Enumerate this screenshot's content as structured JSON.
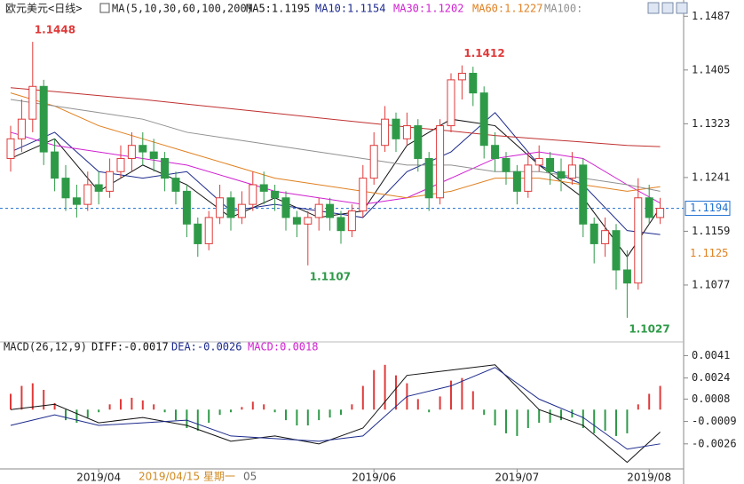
{
  "chart_data": [
    {
      "type": "candlestick",
      "title": "欧元美元<日线>",
      "subtitle": "MA(5,10,30,60,100,200)",
      "up_color": "#e03a3a",
      "down_color": "#2e9a48",
      "ylim": [
        1.0997,
        1.1505
      ],
      "yticks": [
        1.1077,
        1.1159,
        1.1241,
        1.1323,
        1.1405,
        1.1487
      ],
      "candles": [
        [
          1.127,
          1.132,
          1.125,
          1.13
        ],
        [
          1.13,
          1.136,
          1.128,
          1.133
        ],
        [
          1.133,
          1.1448,
          1.131,
          1.138
        ],
        [
          1.138,
          1.139,
          1.126,
          1.128
        ],
        [
          1.128,
          1.13,
          1.122,
          1.124
        ],
        [
          1.124,
          1.126,
          1.119,
          1.121
        ],
        [
          1.121,
          1.123,
          1.118,
          1.12
        ],
        [
          1.12,
          1.125,
          1.119,
          1.123
        ],
        [
          1.123,
          1.125,
          1.12,
          1.122
        ],
        [
          1.122,
          1.127,
          1.121,
          1.125
        ],
        [
          1.125,
          1.129,
          1.124,
          1.127
        ],
        [
          1.127,
          1.131,
          1.125,
          1.129
        ],
        [
          1.129,
          1.131,
          1.126,
          1.128
        ],
        [
          1.128,
          1.13,
          1.125,
          1.127
        ],
        [
          1.127,
          1.128,
          1.122,
          1.124
        ],
        [
          1.124,
          1.125,
          1.12,
          1.122
        ],
        [
          1.122,
          1.123,
          1.115,
          1.117
        ],
        [
          1.117,
          1.118,
          1.112,
          1.114
        ],
        [
          1.114,
          1.119,
          1.113,
          1.118
        ],
        [
          1.118,
          1.123,
          1.117,
          1.121
        ],
        [
          1.121,
          1.122,
          1.116,
          1.118
        ],
        [
          1.118,
          1.122,
          1.117,
          1.12
        ],
        [
          1.12,
          1.125,
          1.119,
          1.123
        ],
        [
          1.123,
          1.125,
          1.12,
          1.122
        ],
        [
          1.122,
          1.123,
          1.119,
          1.121
        ],
        [
          1.121,
          1.122,
          1.116,
          1.118
        ],
        [
          1.118,
          1.119,
          1.115,
          1.117
        ],
        [
          1.117,
          1.119,
          1.1107,
          1.118
        ],
        [
          1.118,
          1.121,
          1.116,
          1.12
        ],
        [
          1.12,
          1.121,
          1.116,
          1.118
        ],
        [
          1.118,
          1.119,
          1.114,
          1.116
        ],
        [
          1.116,
          1.12,
          1.115,
          1.119
        ],
        [
          1.119,
          1.126,
          1.118,
          1.124
        ],
        [
          1.124,
          1.131,
          1.123,
          1.129
        ],
        [
          1.129,
          1.135,
          1.128,
          1.133
        ],
        [
          1.133,
          1.134,
          1.128,
          1.13
        ],
        [
          1.13,
          1.134,
          1.129,
          1.132
        ],
        [
          1.132,
          1.133,
          1.125,
          1.127
        ],
        [
          1.127,
          1.128,
          1.119,
          1.121
        ],
        [
          1.121,
          1.133,
          1.12,
          1.132
        ],
        [
          1.132,
          1.14,
          1.131,
          1.139
        ],
        [
          1.139,
          1.1412,
          1.136,
          1.14
        ],
        [
          1.14,
          1.141,
          1.135,
          1.137
        ],
        [
          1.137,
          1.138,
          1.127,
          1.129
        ],
        [
          1.129,
          1.131,
          1.125,
          1.127
        ],
        [
          1.127,
          1.128,
          1.123,
          1.125
        ],
        [
          1.125,
          1.126,
          1.12,
          1.122
        ],
        [
          1.122,
          1.128,
          1.121,
          1.126
        ],
        [
          1.126,
          1.129,
          1.125,
          1.127
        ],
        [
          1.127,
          1.128,
          1.123,
          1.125
        ],
        [
          1.125,
          1.127,
          1.122,
          1.124
        ],
        [
          1.124,
          1.128,
          1.123,
          1.126
        ],
        [
          1.126,
          1.127,
          1.115,
          1.117
        ],
        [
          1.117,
          1.118,
          1.111,
          1.114
        ],
        [
          1.114,
          1.118,
          1.112,
          1.116
        ],
        [
          1.116,
          1.117,
          1.107,
          1.11
        ],
        [
          1.11,
          1.113,
          1.1027,
          1.108
        ],
        [
          1.108,
          1.124,
          1.107,
          1.121
        ],
        [
          1.121,
          1.123,
          1.117,
          1.118
        ],
        [
          1.118,
          1.121,
          1.117,
          1.1194
        ]
      ],
      "series": [
        {
          "name": "MA5:1.1195",
          "color": "#111111",
          "x": [
            0,
            4,
            8,
            12,
            16,
            20,
            24,
            28,
            32,
            36,
            40,
            44,
            48,
            52,
            56,
            59
          ],
          "values": [
            1.127,
            1.13,
            1.122,
            1.126,
            1.123,
            1.118,
            1.121,
            1.118,
            1.119,
            1.129,
            1.133,
            1.132,
            1.126,
            1.121,
            1.112,
            1.1195
          ]
        },
        {
          "name": "MA10:1.1154",
          "color": "#1c2a8c",
          "x": [
            0,
            4,
            8,
            12,
            16,
            20,
            24,
            28,
            32,
            36,
            40,
            44,
            48,
            52,
            56,
            59
          ],
          "values": [
            1.128,
            1.131,
            1.125,
            1.124,
            1.125,
            1.119,
            1.12,
            1.119,
            1.118,
            1.125,
            1.128,
            1.134,
            1.126,
            1.123,
            1.116,
            1.1154
          ]
        },
        {
          "name": "MA30:1.1202",
          "color": "#d020d0",
          "x": [
            0,
            4,
            8,
            12,
            16,
            20,
            24,
            28,
            32,
            36,
            40,
            44,
            48,
            52,
            56,
            59
          ],
          "values": [
            1.131,
            1.129,
            1.128,
            1.127,
            1.126,
            1.124,
            1.122,
            1.121,
            1.12,
            1.121,
            1.124,
            1.127,
            1.128,
            1.127,
            1.123,
            1.1202
          ]
        },
        {
          "name": "MA60:1.1227",
          "color": "#e08020",
          "x": [
            0,
            4,
            8,
            12,
            16,
            20,
            24,
            28,
            32,
            36,
            40,
            44,
            48,
            52,
            56,
            59
          ],
          "values": [
            1.137,
            1.135,
            1.132,
            1.13,
            1.128,
            1.126,
            1.124,
            1.123,
            1.122,
            1.121,
            1.122,
            1.124,
            1.124,
            1.123,
            1.122,
            1.1227
          ]
        },
        {
          "name": "MA100:",
          "color": "#909090",
          "x": [
            0,
            4,
            8,
            12,
            16,
            20,
            24,
            28,
            32,
            36,
            40,
            44,
            48,
            52,
            56,
            59
          ],
          "values": [
            1.136,
            1.135,
            1.134,
            1.133,
            1.131,
            1.13,
            1.129,
            1.128,
            1.127,
            1.126,
            1.126,
            1.125,
            1.125,
            1.124,
            1.123,
            1.122
          ]
        },
        {
          "color": "#c03030",
          "x": [
            0,
            4,
            8,
            12,
            16,
            20,
            24,
            28,
            32,
            36,
            40,
            44,
            48,
            52,
            56,
            59
          ],
          "values": [
            1.1378,
            1.1372,
            1.1366,
            1.136,
            1.1353,
            1.1346,
            1.1339,
            1.1332,
            1.1325,
            1.1318,
            1.1312,
            1.1305,
            1.13,
            1.1295,
            1.129,
            1.1288
          ]
        }
      ],
      "annotations": [
        {
          "x": 2,
          "value": 1.1448,
          "label": "1.1448",
          "position": "above"
        },
        {
          "x": 41,
          "value": 1.1412,
          "label": "1.1412",
          "position": "above"
        },
        {
          "x": 27,
          "value": 1.1107,
          "label": "1.1107",
          "position": "below"
        },
        {
          "x": 56,
          "value": 1.1027,
          "label": "1.1027",
          "position": "below"
        }
      ],
      "value_markers": [
        {
          "value": 1.1194,
          "label": "1.1194",
          "color": "#1e6fd0",
          "style": "box"
        },
        {
          "value": 1.1125,
          "label": "1.1125",
          "color": "#e08020",
          "style": "text"
        }
      ]
    },
    {
      "type": "macd",
      "title": "MACD(26,12,9)",
      "categories": [
        null,
        null,
        null,
        null,
        null,
        null,
        null,
        null,
        "2019/04",
        null,
        null,
        null,
        null,
        null,
        null,
        null,
        null,
        null,
        null,
        null,
        null,
        null,
        null,
        null,
        null,
        null,
        null,
        null,
        null,
        null,
        null,
        null,
        null,
        "2019/06",
        null,
        null,
        null,
        null,
        null,
        null,
        null,
        null,
        null,
        null,
        null,
        null,
        "2019/07",
        null,
        null,
        null,
        null,
        null,
        null,
        null,
        null,
        null,
        null,
        null,
        "2019/08",
        null
      ],
      "cursor_label": "2019/04/15 星期一",
      "cursor_time": "05",
      "ylim": [
        -0.0045,
        0.0046
      ],
      "yticks": [
        -0.0026,
        -0.0009,
        0.0008,
        0.0024,
        0.0041
      ],
      "histogram": {
        "name": "MACD:0.0018",
        "color": "#d020d0",
        "up_color": "#e03a3a",
        "down_color": "#2e9a48",
        "values": [
          0.0012,
          0.0018,
          0.002,
          0.0015,
          0.0005,
          -0.0008,
          -0.001,
          -0.0006,
          -0.0002,
          0.0004,
          0.0008,
          0.0009,
          0.0007,
          0.0004,
          -0.0002,
          -0.0008,
          -0.0014,
          -0.0016,
          -0.001,
          -0.0004,
          -0.0002,
          0.0002,
          0.0006,
          0.0004,
          -0.0002,
          -0.0008,
          -0.0012,
          -0.0012,
          -0.0008,
          -0.0006,
          -0.0004,
          0.0004,
          0.0018,
          0.003,
          0.0034,
          0.0026,
          0.002,
          0.0008,
          -0.0002,
          0.001,
          0.0022,
          0.0024,
          0.0014,
          -0.0004,
          -0.0012,
          -0.0018,
          -0.002,
          -0.0014,
          -0.001,
          -0.001,
          -0.0008,
          -0.0006,
          -0.0014,
          -0.0018,
          -0.0016,
          -0.002,
          -0.0018,
          0.0004,
          0.0012,
          0.0018
        ]
      },
      "series": [
        {
          "name": "DIFF:-0.0017",
          "color": "#111111",
          "x": [
            0,
            4,
            8,
            12,
            16,
            20,
            24,
            28,
            32,
            36,
            40,
            44,
            48,
            52,
            56,
            59
          ],
          "values": [
            0,
            0.0004,
            -0.001,
            -0.0006,
            -0.0012,
            -0.0024,
            -0.002,
            -0.0026,
            -0.0014,
            0.0026,
            0.003,
            0.0034,
            0,
            -0.0012,
            -0.004,
            -0.0017
          ]
        },
        {
          "name": "DEA:-0.0026",
          "color": "#1c2a8c",
          "x": [
            0,
            4,
            8,
            12,
            16,
            20,
            24,
            28,
            32,
            36,
            40,
            44,
            48,
            52,
            56,
            59
          ],
          "values": [
            -0.0012,
            -0.0004,
            -0.0012,
            -0.001,
            -0.0008,
            -0.002,
            -0.0022,
            -0.0024,
            -0.002,
            0.001,
            0.0018,
            0.0032,
            0.0008,
            -0.0006,
            -0.003,
            -0.0026
          ]
        }
      ]
    }
  ]
}
